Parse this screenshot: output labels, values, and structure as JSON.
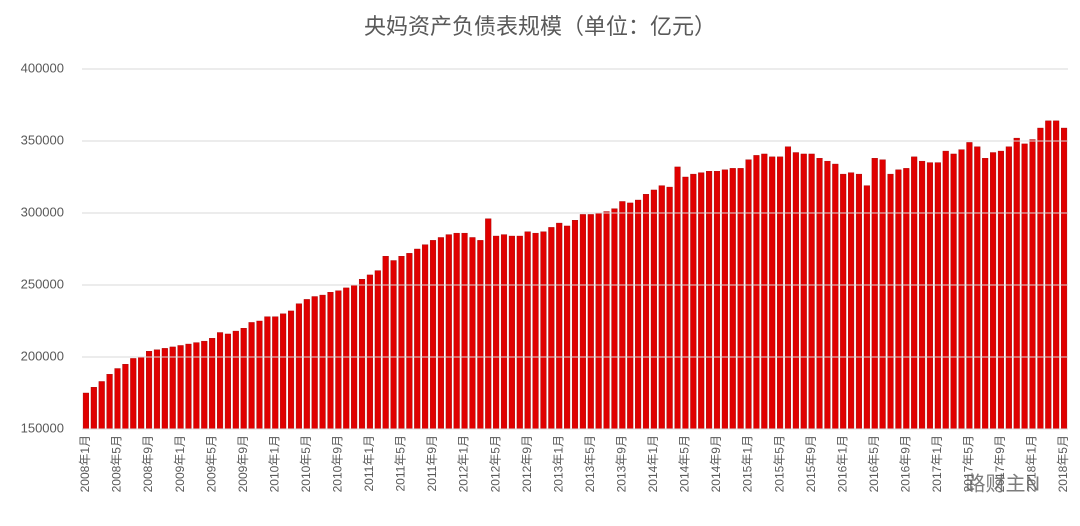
{
  "chart_data": {
    "type": "bar",
    "title": "央妈资产负债表规模（单位：亿元）",
    "categories": [
      "2008年1月",
      null,
      null,
      null,
      "2008年5月",
      null,
      null,
      null,
      "2008年9月",
      null,
      null,
      null,
      "2009年1月",
      null,
      null,
      null,
      "2009年5月",
      null,
      null,
      null,
      "2009年9月",
      null,
      null,
      null,
      "2010年1月",
      null,
      null,
      null,
      "2010年5月",
      null,
      null,
      null,
      "2010年9月",
      null,
      null,
      null,
      "2011年1月",
      null,
      null,
      null,
      "2011年5月",
      null,
      null,
      null,
      "2011年9月",
      null,
      null,
      null,
      "2012年1月",
      null,
      null,
      null,
      "2012年5月",
      null,
      null,
      null,
      "2012年9月",
      null,
      null,
      null,
      "2013年1月",
      null,
      null,
      null,
      "2013年5月",
      null,
      null,
      null,
      "2013年9月",
      null,
      null,
      null,
      "2014年1月",
      null,
      null,
      null,
      "2014年5月",
      null,
      null,
      null,
      "2014年9月",
      null,
      null,
      null,
      "2015年1月",
      null,
      null,
      null,
      "2015年5月",
      null,
      null,
      null,
      "2015年9月",
      null,
      null,
      null,
      "2016年1月",
      null,
      null,
      null,
      "2016年5月",
      null,
      null,
      null,
      "2016年9月",
      null,
      null,
      null,
      "2017年1月",
      null,
      null,
      null,
      "2017年5月",
      null,
      null,
      null,
      "2017年9月",
      null,
      null,
      null,
      "2018年1月",
      null,
      null,
      null,
      "2018年5月"
    ],
    "values": [
      175000,
      179000,
      183000,
      188000,
      192000,
      195000,
      199000,
      200000,
      204000,
      205000,
      206000,
      207000,
      208000,
      209000,
      210000,
      211000,
      213000,
      217000,
      216000,
      218000,
      220000,
      224000,
      225000,
      228000,
      228000,
      230000,
      232000,
      237000,
      240000,
      242000,
      243000,
      245000,
      246000,
      248000,
      250000,
      254000,
      257000,
      260000,
      270000,
      267000,
      270000,
      272000,
      275000,
      278000,
      281000,
      283000,
      285000,
      286000,
      286000,
      283000,
      281000,
      296000,
      284000,
      285000,
      284000,
      284000,
      287000,
      286000,
      287000,
      290000,
      293000,
      291000,
      295000,
      299000,
      299000,
      300000,
      301000,
      303000,
      308000,
      307000,
      309000,
      313000,
      316000,
      319000,
      318000,
      332000,
      325000,
      327000,
      328000,
      329000,
      329000,
      330000,
      331000,
      331000,
      337000,
      340000,
      341000,
      339000,
      339000,
      346000,
      342000,
      341000,
      341000,
      338000,
      336000,
      334000,
      327000,
      328000,
      327000,
      319000,
      338000,
      337000,
      327000,
      330000,
      331000,
      339000,
      336000,
      335000,
      335000,
      343000,
      341000,
      344000,
      349000,
      346000,
      338000,
      342000,
      343000,
      346000,
      352000,
      348000,
      351000,
      359000,
      364000,
      364000,
      359000
    ],
    "color": "#e00000",
    "ylim": [
      150000,
      400000
    ],
    "yticks": [
      150000,
      200000,
      250000,
      300000,
      350000,
      400000
    ],
    "grid": true,
    "watermark": "路财主N"
  }
}
